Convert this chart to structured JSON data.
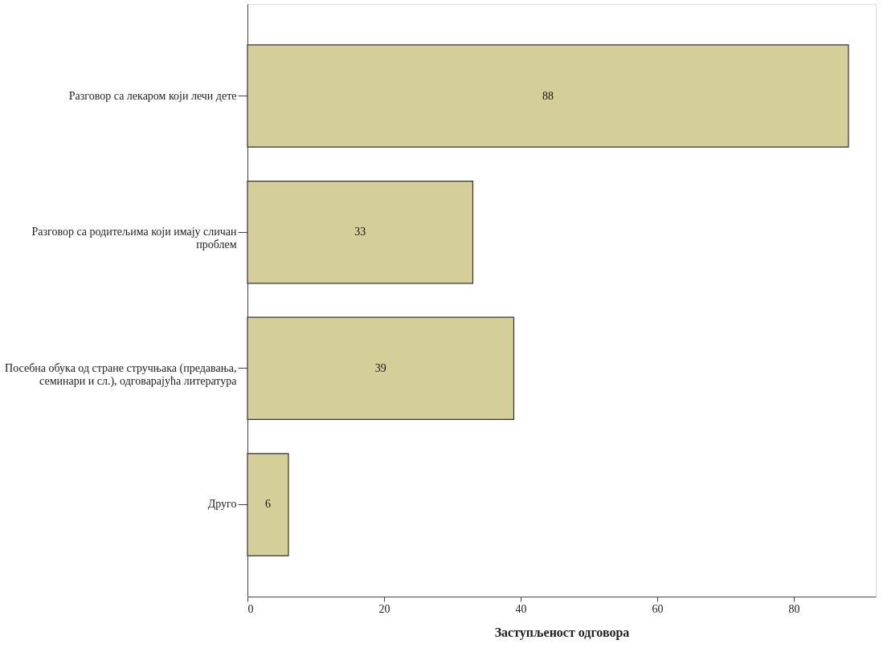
{
  "chart_data": {
    "type": "bar",
    "orientation": "horizontal",
    "xlabel": "Заступљеност одговора",
    "categories": [
      "Разговор са лекаром који лечи дете",
      "Разговор са родитељима који имају сличан\nпроблем",
      "Посебна обука од стране стручњака (предавања,\nсеминари и сл.), одговарајућа литература",
      "Друго"
    ],
    "values": [
      88,
      33,
      39,
      6
    ],
    "color": "#d4cf98",
    "xlim": [
      0,
      92
    ],
    "xticks": [
      0,
      20,
      40,
      60,
      80
    ],
    "grid": false,
    "data_labels": true
  }
}
